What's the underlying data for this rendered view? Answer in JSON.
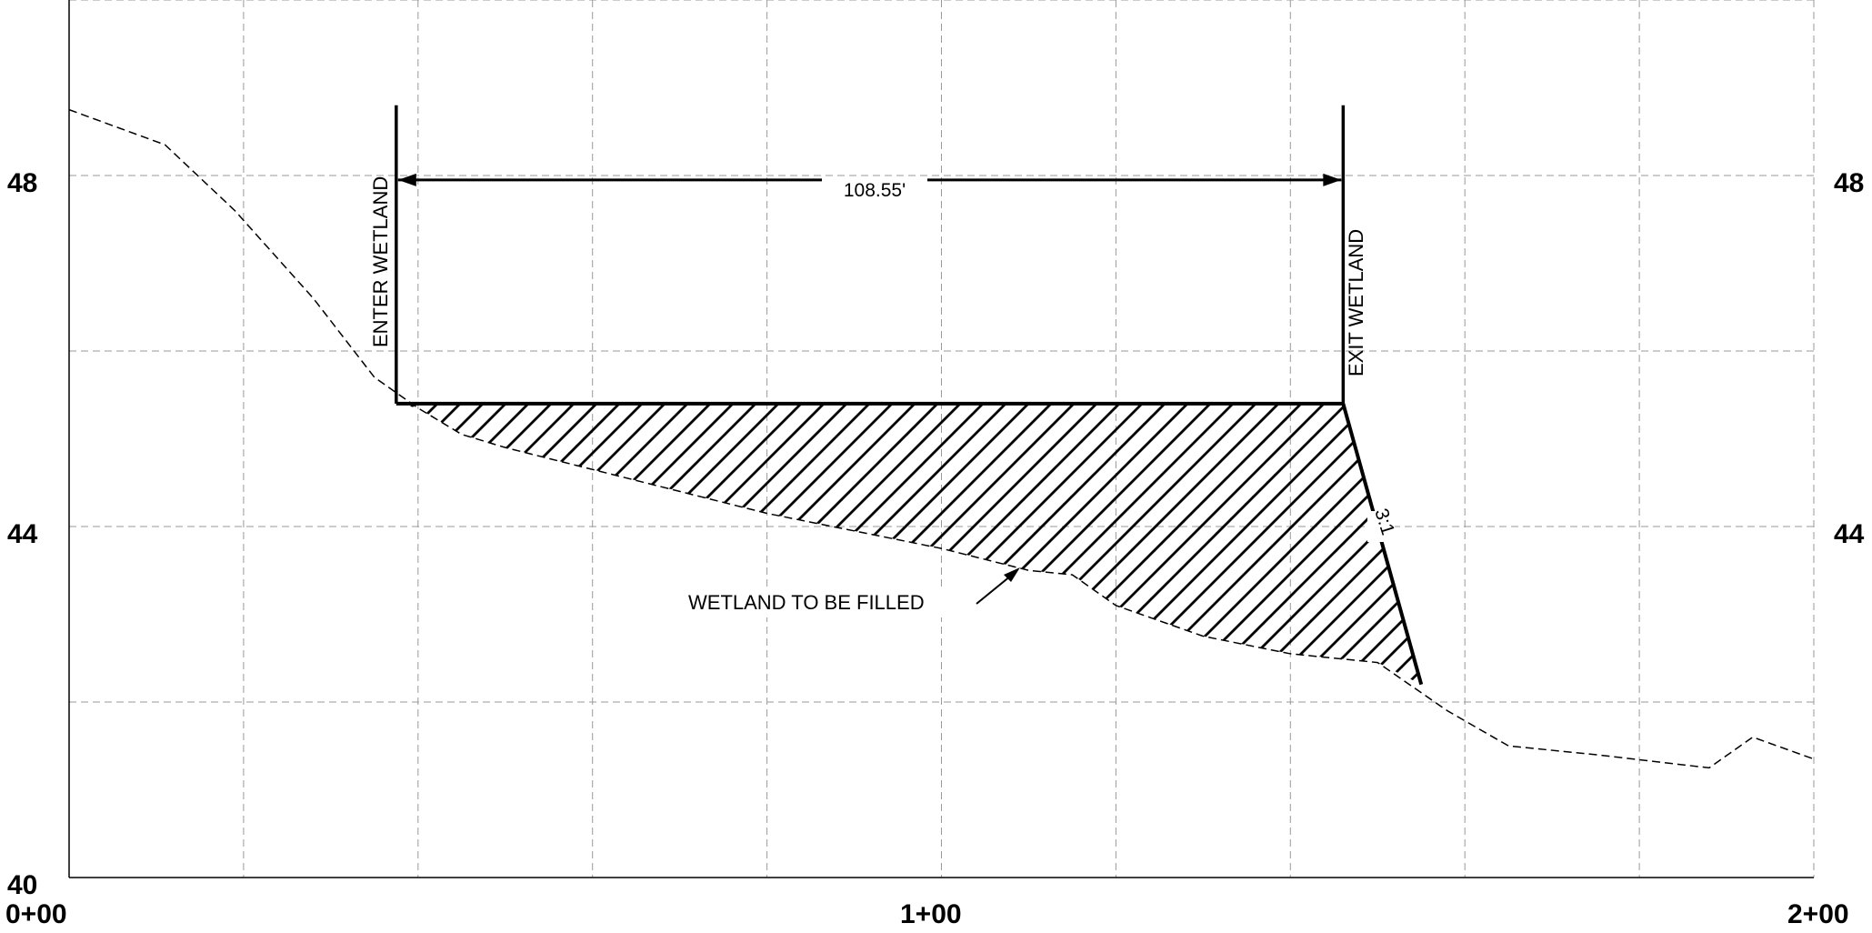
{
  "y_axis": {
    "ticks": [
      40,
      44,
      48
    ],
    "label_top": "48",
    "label_mid": "44",
    "label_bottom": "40",
    "range": [
      40,
      50
    ],
    "gridline_interval": 2
  },
  "x_axis": {
    "tick_labels": [
      "0+00",
      "1+00",
      "2+00"
    ],
    "range_ft": [
      0,
      200
    ],
    "gridline_interval_ft": 20
  },
  "annotations": {
    "enter": "ENTER WETLAND",
    "exit": "EXIT WETLAND",
    "dimension": "108.55'",
    "fill_label": "WETLAND TO BE FILLED",
    "slope": "3:1"
  },
  "chart_data": {
    "type": "line",
    "xlabel": "",
    "ylabel": "",
    "xlim": [
      0,
      200
    ],
    "ylim": [
      40,
      50
    ],
    "grid": true,
    "existing_ground": {
      "x": [
        0,
        11,
        19,
        28,
        35,
        40,
        45,
        50,
        60,
        70,
        80,
        90,
        100,
        110,
        115,
        120,
        130,
        140,
        150,
        158,
        165,
        175,
        188,
        193,
        200
      ],
      "y": [
        48.75,
        48.35,
        47.6,
        46.6,
        45.7,
        45.35,
        45.05,
        44.9,
        44.65,
        44.4,
        44.15,
        43.95,
        43.75,
        43.5,
        43.45,
        43.1,
        42.75,
        42.55,
        42.45,
        41.9,
        41.5,
        41.4,
        41.25,
        41.6,
        41.35
      ]
    },
    "fill_section": {
      "top_elevation": 45.4,
      "enter_station": 37.5,
      "exit_station": 146.05,
      "toe_station": 155,
      "toe_elevation": 42.2,
      "pole_top_elevation": 48.8
    },
    "dimension_elevation": 47.95
  }
}
